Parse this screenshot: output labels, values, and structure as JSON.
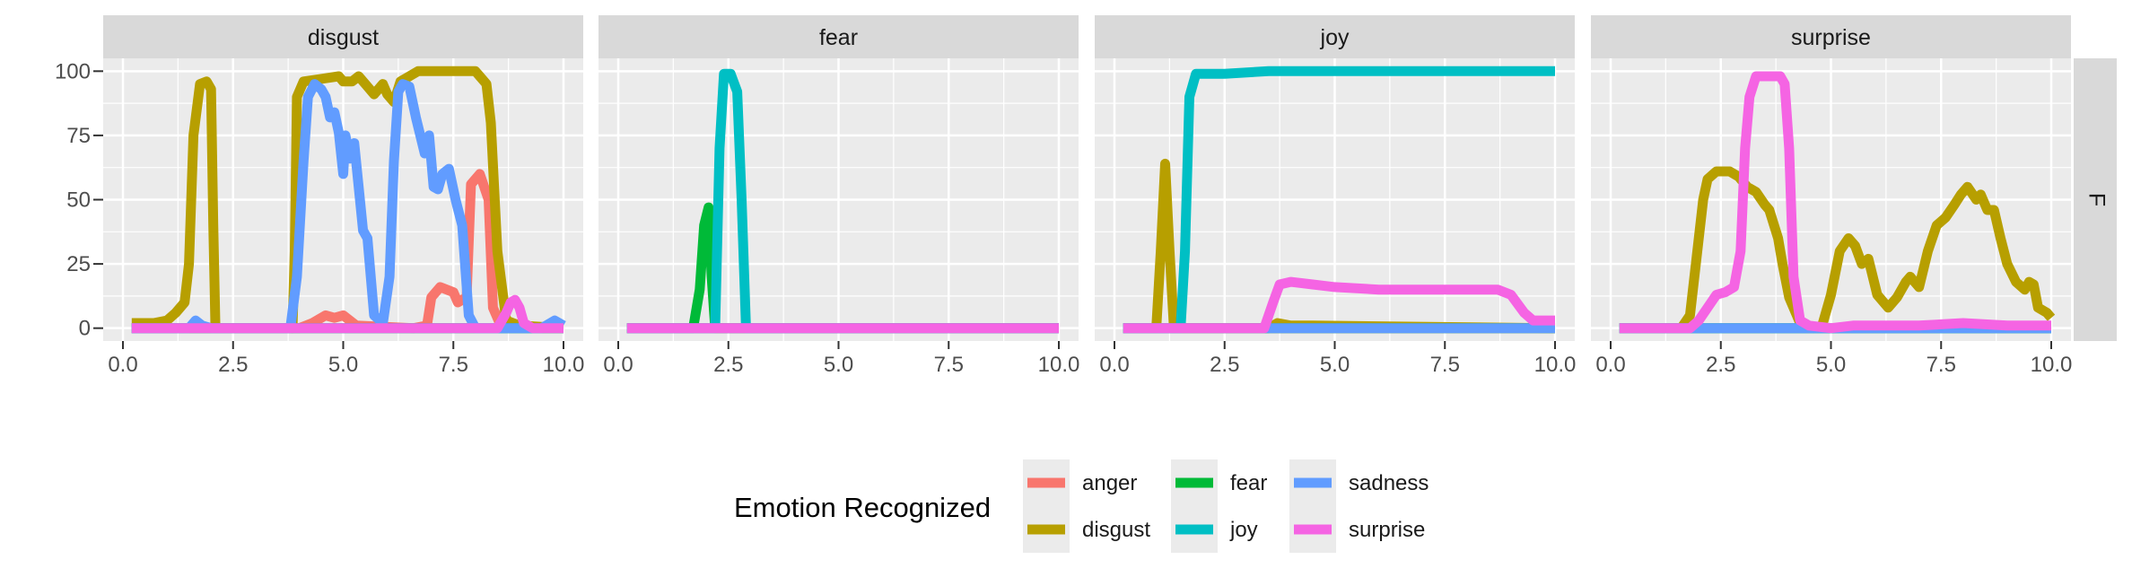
{
  "chart_data": {
    "type": "line",
    "panels": [
      "disgust",
      "fear",
      "joy",
      "surprise"
    ],
    "row_label": "F",
    "xlim": [
      0,
      10
    ],
    "ylim": [
      -5,
      105
    ],
    "x_ticks": [
      0,
      2.5,
      5,
      7.5,
      10
    ],
    "x_tick_labels": [
      "0.0",
      "2.5",
      "5.0",
      "7.5",
      "10.0"
    ],
    "y_ticks": [
      0,
      25,
      50,
      75,
      100
    ],
    "y_tick_labels": [
      "0",
      "25",
      "50",
      "75",
      "100"
    ],
    "grid": true,
    "xlabel": "",
    "ylabel": "",
    "legend": {
      "title": "Emotion Recognized",
      "position": "bottom",
      "entries": [
        "anger",
        "disgust",
        "fear",
        "joy",
        "sadness",
        "surprise"
      ]
    },
    "colors": {
      "anger": "#F8766D",
      "disgust": "#B79F00",
      "fear": "#00BA38",
      "joy": "#00BFC4",
      "sadness": "#619CFF",
      "surprise": "#F564E3"
    },
    "series_points": {
      "disgust": [
        {
          "name": "anger",
          "x": [
            0.2,
            4.0,
            4.3,
            4.6,
            4.8,
            5.0,
            5.3,
            6.6,
            6.9,
            7.0,
            7.2,
            7.5,
            7.6,
            7.8,
            7.9,
            8.1,
            8.3,
            8.4,
            8.6,
            10.0
          ],
          "y": [
            0,
            0,
            2,
            5,
            4,
            5,
            1,
            0,
            1,
            12,
            16,
            14,
            10,
            12,
            56,
            60,
            50,
            8,
            0,
            0
          ]
        },
        {
          "name": "disgust",
          "x": [
            0.2,
            0.7,
            1.0,
            1.2,
            1.4,
            1.5,
            1.6,
            1.75,
            1.9,
            2.0,
            2.05,
            2.1,
            3.85,
            3.9,
            3.95,
            4.1,
            4.5,
            4.9,
            5.0,
            5.2,
            5.35,
            5.5,
            5.7,
            5.9,
            6.0,
            6.15,
            6.3,
            6.5,
            6.7,
            7.0,
            7.5,
            8.0,
            8.1,
            8.25,
            8.35,
            8.5,
            8.7,
            9.0,
            10.0
          ],
          "y": [
            2,
            2,
            3,
            6,
            10,
            25,
            75,
            95,
            96,
            93,
            40,
            0,
            0,
            30,
            90,
            96,
            97,
            98,
            96,
            96,
            98,
            95,
            91,
            95,
            91,
            88,
            96,
            98,
            100,
            100,
            100,
            100,
            98,
            95,
            80,
            30,
            3,
            1,
            0
          ]
        },
        {
          "name": "fear",
          "x": [
            0.2,
            10.0
          ],
          "y": [
            0,
            0
          ]
        },
        {
          "name": "joy",
          "x": [
            0.2,
            10.0
          ],
          "y": [
            0,
            0
          ]
        },
        {
          "name": "sadness",
          "x": [
            0.2,
            1.5,
            1.65,
            1.8,
            2.0,
            3.8,
            3.95,
            4.1,
            4.2,
            4.35,
            4.5,
            4.6,
            4.7,
            4.8,
            4.9,
            5.0,
            5.05,
            5.15,
            5.25,
            5.35,
            5.45,
            5.55,
            5.7,
            5.9,
            6.05,
            6.15,
            6.25,
            6.35,
            6.5,
            6.65,
            6.75,
            6.85,
            6.95,
            7.05,
            7.15,
            7.25,
            7.4,
            7.55,
            7.7,
            7.85,
            8.0,
            9.5,
            9.8,
            10.0
          ],
          "y": [
            0,
            0,
            3,
            1,
            0,
            0,
            20,
            65,
            90,
            95,
            93,
            90,
            82,
            84,
            76,
            60,
            75,
            66,
            72,
            55,
            38,
            35,
            5,
            2,
            20,
            65,
            92,
            95,
            94,
            82,
            75,
            68,
            75,
            55,
            54,
            60,
            62,
            50,
            40,
            5,
            0,
            0,
            3,
            1
          ]
        },
        {
          "name": "surprise",
          "x": [
            0.2,
            8.5,
            8.7,
            8.8,
            8.9,
            9.0,
            9.1,
            9.3,
            10.0
          ],
          "y": [
            0,
            0,
            6,
            10,
            11,
            8,
            2,
            0,
            0
          ]
        }
      ],
      "fear": [
        {
          "name": "anger",
          "x": [
            0.2,
            10.0
          ],
          "y": [
            0,
            0
          ]
        },
        {
          "name": "disgust",
          "x": [
            0.2,
            10.0
          ],
          "y": [
            0,
            0
          ]
        },
        {
          "name": "fear",
          "x": [
            0.2,
            1.7,
            1.85,
            1.95,
            2.05,
            2.12,
            2.2,
            10.0
          ],
          "y": [
            0,
            0,
            15,
            40,
            47,
            20,
            0,
            0
          ]
        },
        {
          "name": "joy",
          "x": [
            0.2,
            2.2,
            2.3,
            2.4,
            2.55,
            2.7,
            2.8,
            2.9,
            10.0
          ],
          "y": [
            0,
            0,
            70,
            99,
            99,
            92,
            50,
            0,
            0
          ]
        },
        {
          "name": "sadness",
          "x": [
            0.2,
            10.0
          ],
          "y": [
            0,
            0
          ]
        },
        {
          "name": "surprise",
          "x": [
            0.2,
            10.0
          ],
          "y": [
            0,
            0
          ]
        }
      ],
      "joy": [
        {
          "name": "anger",
          "x": [
            0.2,
            10.0
          ],
          "y": [
            0,
            0
          ]
        },
        {
          "name": "disgust",
          "x": [
            0.2,
            0.95,
            1.05,
            1.15,
            1.25,
            1.35,
            1.5,
            3.5,
            3.7,
            4.0,
            4.5,
            10.0
          ],
          "y": [
            0,
            0,
            30,
            64,
            30,
            0,
            0,
            0,
            2,
            1,
            1,
            0
          ]
        },
        {
          "name": "fear",
          "x": [
            0.2,
            10.0
          ],
          "y": [
            0,
            0
          ]
        },
        {
          "name": "joy",
          "x": [
            0.2,
            1.5,
            1.6,
            1.7,
            1.85,
            2.5,
            3.5,
            5.0,
            10.0
          ],
          "y": [
            0,
            0,
            30,
            90,
            99,
            99,
            100,
            100,
            100
          ]
        },
        {
          "name": "sadness",
          "x": [
            0.2,
            10.0
          ],
          "y": [
            0,
            0
          ]
        },
        {
          "name": "surprise",
          "x": [
            0.2,
            3.4,
            3.6,
            3.75,
            4.0,
            4.5,
            5.0,
            6.0,
            7.0,
            8.0,
            8.7,
            9.0,
            9.3,
            9.5,
            10.0
          ],
          "y": [
            0,
            0,
            10,
            17,
            18,
            17,
            16,
            15,
            15,
            15,
            15,
            13,
            6,
            3,
            3
          ]
        }
      ],
      "surprise": [
        {
          "name": "anger",
          "x": [
            0.2,
            10.0
          ],
          "y": [
            0,
            0
          ]
        },
        {
          "name": "disgust",
          "x": [
            0.2,
            1.6,
            1.8,
            2.0,
            2.1,
            2.2,
            2.4,
            2.7,
            2.9,
            3.1,
            3.3,
            3.5,
            3.6,
            3.8,
            3.9,
            4.05,
            4.3,
            4.6,
            4.8,
            5.0,
            5.2,
            5.4,
            5.55,
            5.7,
            5.85,
            6.05,
            6.3,
            6.5,
            6.7,
            6.8,
            7.0,
            7.2,
            7.4,
            7.6,
            7.8,
            7.95,
            8.1,
            8.3,
            8.4,
            8.55,
            8.7,
            8.85,
            9.0,
            9.2,
            9.4,
            9.5,
            9.6,
            9.7,
            9.9,
            10.0
          ],
          "y": [
            0,
            0,
            5,
            35,
            50,
            58,
            61,
            61,
            59,
            55,
            53,
            48,
            46,
            35,
            25,
            12,
            2,
            0,
            1,
            13,
            30,
            35,
            32,
            25,
            27,
            13,
            8,
            12,
            18,
            20,
            16,
            30,
            40,
            43,
            48,
            52,
            55,
            50,
            52,
            46,
            46,
            35,
            25,
            18,
            15,
            18,
            17,
            8,
            6,
            4
          ]
        },
        {
          "name": "fear",
          "x": [
            0.2,
            10.0
          ],
          "y": [
            0,
            0
          ]
        },
        {
          "name": "joy",
          "x": [
            0.2,
            10.0
          ],
          "y": [
            0,
            0
          ]
        },
        {
          "name": "sadness",
          "x": [
            0.2,
            10.0
          ],
          "y": [
            0,
            0
          ]
        },
        {
          "name": "surprise",
          "x": [
            0.2,
            1.8,
            2.0,
            2.2,
            2.4,
            2.6,
            2.8,
            2.95,
            3.05,
            3.15,
            3.3,
            3.6,
            3.85,
            3.95,
            4.05,
            4.15,
            4.3,
            4.5,
            5.0,
            5.5,
            6.0,
            7.0,
            8.0,
            9.0,
            10.0
          ],
          "y": [
            0,
            0,
            3,
            8,
            13,
            14,
            16,
            30,
            70,
            90,
            98,
            98,
            98,
            95,
            70,
            20,
            3,
            1,
            0,
            1,
            1,
            1,
            2,
            1,
            1
          ]
        }
      ]
    }
  }
}
